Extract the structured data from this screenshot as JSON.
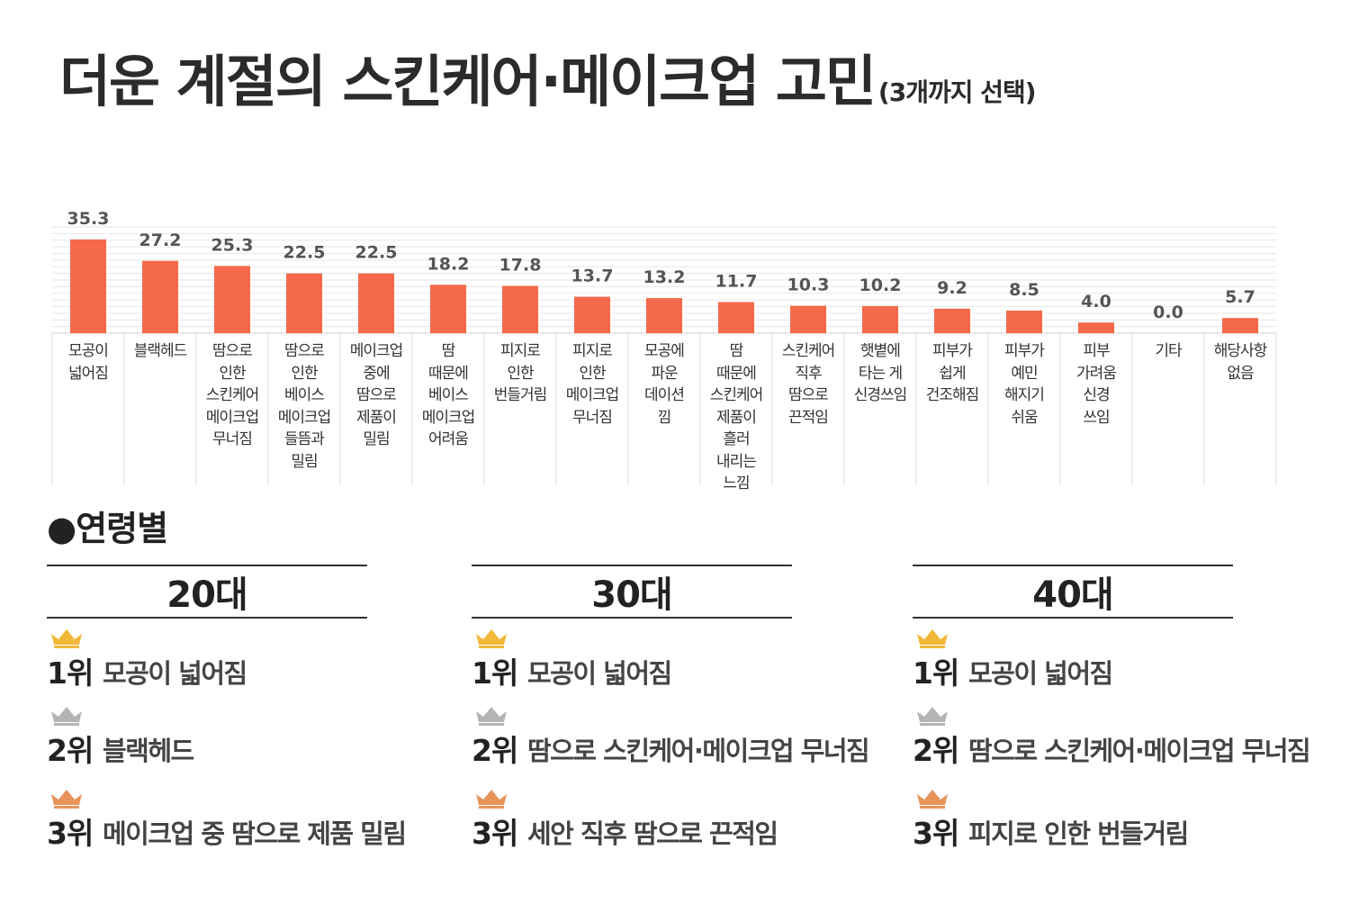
{
  "title": "더운 계절의 스킨케어·메이크업 고민",
  "subtitle": "(3개까지 선택)",
  "chart_data": {
    "type": "bar",
    "ylim": [
      0,
      40
    ],
    "grid": true,
    "bar_color": "#f4694a",
    "categories": [
      "모공이\n넓어짐",
      "블랙헤드",
      "땀으로\n인한\n스킨케어\n메이크업\n무너짐",
      "땀으로\n인한\n베이스\n메이크업\n들뜸과\n밀림",
      "메이크업\n중에\n땀으로\n제품이\n밀림",
      "땀\n때문에\n베이스\n메이크업\n어려움",
      "피지로\n인한\n번들거림",
      "피지로\n인한\n메이크업\n무너짐",
      "모공에\n파운\n데이션\n낌",
      "땀\n때문에\n스킨케어\n제품이\n흘러\n내리는\n느낌",
      "스킨케어\n직후\n땀으로\n끈적임",
      "햇볕에\n타는 게\n신경쓰임",
      "피부가\n쉽게\n건조해짐",
      "피부가\n예민\n해지기\n쉬움",
      "피부\n가려움\n신경\n쓰임",
      "기타",
      "해당사항\n없음"
    ],
    "values": [
      35.3,
      27.2,
      25.3,
      22.5,
      22.5,
      18.2,
      17.8,
      13.7,
      13.2,
      11.7,
      10.3,
      10.2,
      9.2,
      8.5,
      4.0,
      0.0,
      5.7
    ],
    "value_labels": [
      "35.3",
      "27.2",
      "25.3",
      "22.5",
      "22.5",
      "18.2",
      "17.8",
      "13.7",
      "13.2",
      "11.7",
      "10.3",
      "10.2",
      "9.2",
      "8.5",
      "4.0",
      "0.0",
      "5.7"
    ]
  },
  "age_section": {
    "heading": "●연령별",
    "groups": [
      {
        "label": "20대",
        "ranks": [
          {
            "rank": "1위",
            "text": "모공이 넓어짐",
            "crown": "gold-crown-icon",
            "color": "#f2b83a"
          },
          {
            "rank": "2위",
            "text": "블랙헤드",
            "crown": "silver-crown-icon",
            "color": "#b4b4b4"
          },
          {
            "rank": "3위",
            "text": "메이크업 중 땀으로 제품 밀림",
            "crown": "bronze-crown-icon",
            "color": "#e8935a"
          }
        ]
      },
      {
        "label": "30대",
        "ranks": [
          {
            "rank": "1위",
            "text": "모공이 넓어짐",
            "crown": "gold-crown-icon",
            "color": "#f2b83a"
          },
          {
            "rank": "2위",
            "text": "땀으로 스킨케어·메이크업 무너짐",
            "crown": "silver-crown-icon",
            "color": "#b4b4b4"
          },
          {
            "rank": "3위",
            "text": "세안 직후 땀으로 끈적임",
            "crown": "bronze-crown-icon",
            "color": "#e8935a"
          }
        ]
      },
      {
        "label": "40대",
        "ranks": [
          {
            "rank": "1위",
            "text": "모공이 넓어짐",
            "crown": "gold-crown-icon",
            "color": "#f2b83a"
          },
          {
            "rank": "2위",
            "text": "땀으로 스킨케어·메이크업 무너짐",
            "crown": "silver-crown-icon",
            "color": "#b4b4b4"
          },
          {
            "rank": "3위",
            "text": "피지로 인한 번들거림",
            "crown": "bronze-crown-icon",
            "color": "#e8935a"
          }
        ]
      }
    ]
  }
}
